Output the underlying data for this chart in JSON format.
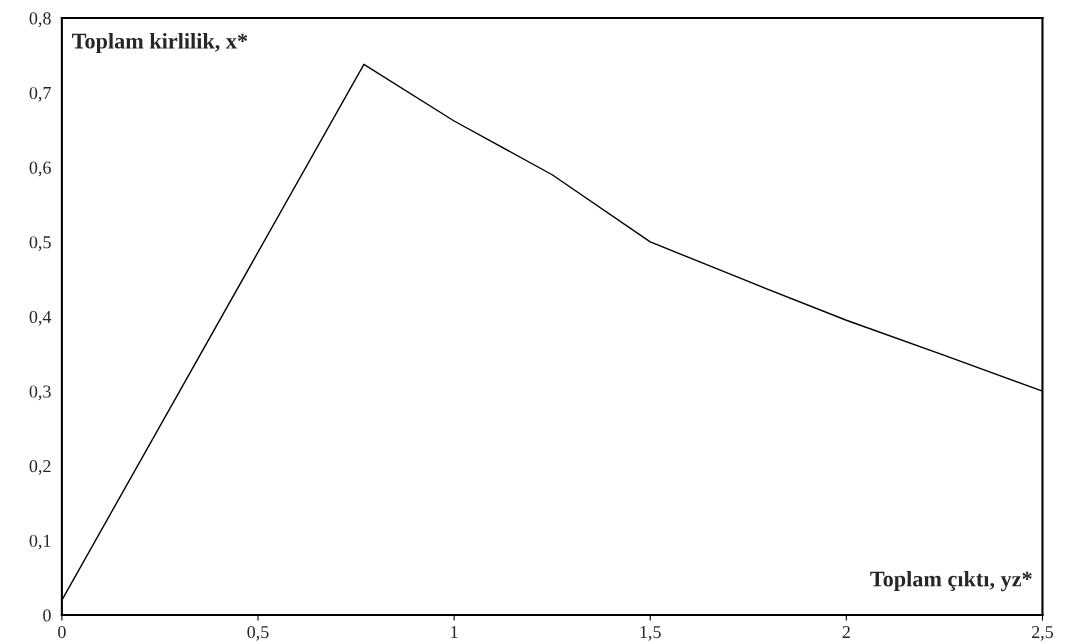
{
  "chart_data": {
    "type": "line",
    "x": [
      0,
      0.77,
      1,
      1.25,
      1.5,
      1.75,
      2,
      2.25,
      2.5
    ],
    "values": [
      0.02,
      0.738,
      0.662,
      0.59,
      0.5,
      0.447,
      0.395,
      0.348,
      0.3
    ],
    "color": "#000000",
    "marker": "none",
    "line_style": "solid",
    "grid": false,
    "legend": false,
    "xlim": [
      0,
      2.5
    ],
    "ylim": [
      0,
      0.8
    ],
    "xticks": [
      0,
      {
        "value": 0.5,
        "label": "0,5"
      },
      1,
      {
        "value": 1.5,
        "label": "1,5"
      },
      2,
      {
        "value": 2.5,
        "label": "2,5"
      }
    ],
    "yticks": [
      0,
      {
        "value": 0.1,
        "label": "0,1"
      },
      {
        "value": 0.2,
        "label": "0,2"
      },
      {
        "value": 0.3,
        "label": "0,3"
      },
      {
        "value": 0.4,
        "label": "0,4"
      },
      {
        "value": 0.5,
        "label": "0,5"
      },
      {
        "value": 0.6,
        "label": "0,6"
      },
      {
        "value": 0.7,
        "label": "0,7"
      },
      {
        "value": 0.8,
        "label": "0,8"
      }
    ],
    "annotations": [
      "Toplam kirlilik, x*",
      "Toplam çıktı, yz*"
    ]
  }
}
